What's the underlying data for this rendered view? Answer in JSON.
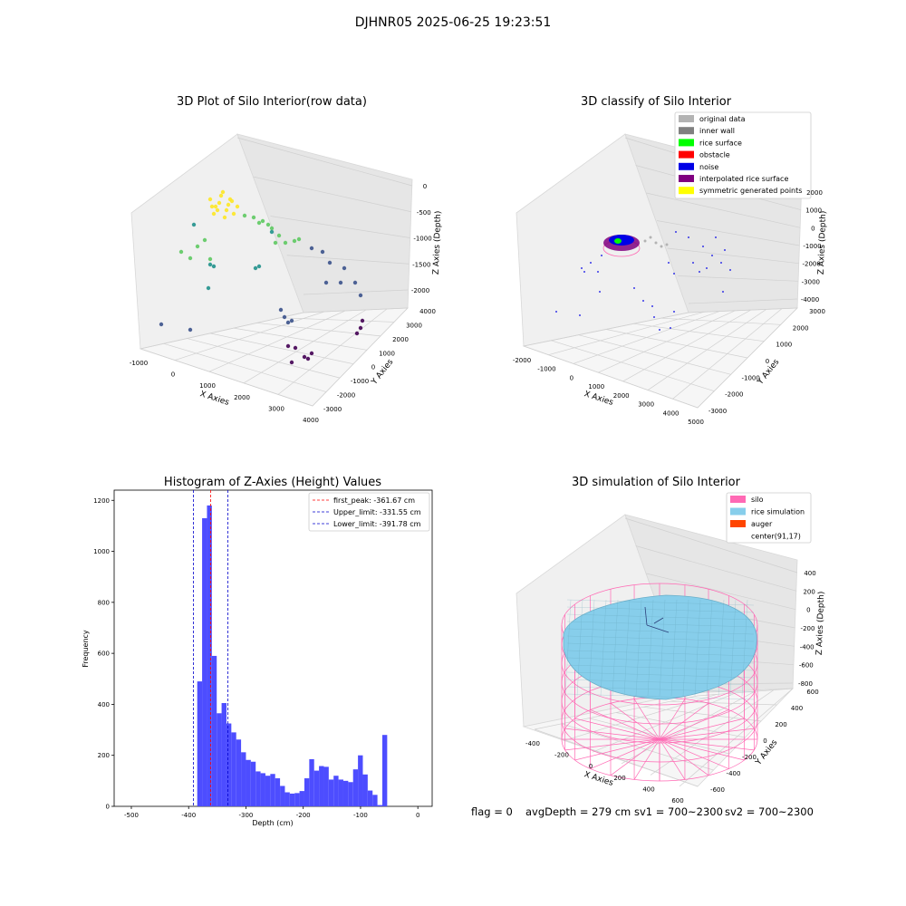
{
  "figure": {
    "suptitle": "DJHNR05 2025-06-25 19:23:51",
    "status": {
      "flag": "flag = 0",
      "avg_depth": "avgDepth = 279 cm",
      "sv1": "sv1 = 700~2300",
      "sv2": "sv2 = 700~2300"
    }
  },
  "chart_data": [
    {
      "type": "scatter",
      "title": "3D Plot of Silo Interior(row data)",
      "xlabel": "X Axies",
      "ylabel": "Y Axies",
      "zlabel": "Z Axies (Depth)",
      "x_ticks": [
        "-1000",
        "0",
        "1000",
        "2000",
        "3000",
        "4000"
      ],
      "y_ticks": [
        "-3000",
        "-2000",
        "-1000",
        "0",
        "1000",
        "2000",
        "3000",
        "4000"
      ],
      "z_ticks": [
        "-2000",
        "-1500",
        "-1000",
        "-500",
        "0"
      ],
      "colormap": [
        "#440154",
        "#3b528b",
        "#21918c",
        "#5ec962",
        "#fde725"
      ]
    },
    {
      "type": "scatter",
      "title": "3D classify of Silo Interior",
      "xlabel": "X Axies",
      "ylabel": "Y Axies",
      "zlabel": "Z Axies (Depth)",
      "x_ticks": [
        "-2000",
        "-1000",
        "0",
        "1000",
        "2000",
        "3000",
        "4000",
        "5000"
      ],
      "y_ticks": [
        "-3000",
        "-2000",
        "-1000",
        "0",
        "1000",
        "2000",
        "3000"
      ],
      "z_ticks": [
        "-4000",
        "-3000",
        "-2000",
        "-1000",
        "0",
        "1000",
        "2000"
      ],
      "legend": [
        {
          "label": "original data",
          "color": "#b3b3b3"
        },
        {
          "label": "inner wall",
          "color": "#808080"
        },
        {
          "label": "rice surface",
          "color": "#00ff00"
        },
        {
          "label": "obstacle",
          "color": "#ff0000"
        },
        {
          "label": "noise",
          "color": "#0000e6"
        },
        {
          "label": "interpolated rice surface",
          "color": "#800080"
        },
        {
          "label": "symmetric generated points",
          "color": "#ffff00"
        }
      ],
      "legend_loc": "upper right"
    },
    {
      "type": "bar",
      "title": "Histogram of Z-Axies (Height) Values",
      "xlabel": "Depth (cm)",
      "ylabel": "Frequency",
      "xlim": [
        -530,
        25
      ],
      "ylim": [
        0,
        1240
      ],
      "x_ticks": [
        -500,
        -400,
        -300,
        -200,
        -100,
        0
      ],
      "y_ticks": [
        0,
        200,
        400,
        600,
        800,
        1000,
        1200
      ],
      "bar_color": "#4d4dff",
      "bins_start": -385,
      "bin_width": 8.5,
      "values": [
        490,
        1130,
        1180,
        590,
        365,
        405,
        325,
        290,
        262,
        212,
        182,
        175,
        137,
        130,
        120,
        127,
        110,
        80,
        55,
        50,
        52,
        60,
        110,
        185,
        140,
        158,
        155,
        105,
        120,
        105,
        100,
        95,
        145,
        200,
        125,
        62,
        45,
        5,
        280
      ],
      "lines": [
        {
          "label": "first_peak: -361.67 cm",
          "x": -361.67,
          "color": "#ff0000"
        },
        {
          "label": "Upper_limit: -331.55 cm",
          "x": -331.55,
          "color": "#0000cc"
        },
        {
          "label": "Lower_limit: -391.78 cm",
          "x": -391.78,
          "color": "#0000cc"
        }
      ],
      "legend_loc": "upper right"
    },
    {
      "type": "area",
      "title": "3D simulation of Silo Interior",
      "xlabel": "X Axies",
      "ylabel": "Y Axies",
      "zlabel": "Z Axies (Depth)",
      "x_ticks": [
        "-400",
        "-200",
        "0",
        "200",
        "400",
        "600"
      ],
      "y_ticks": [
        "-600",
        "-400",
        "-200",
        "0",
        "200",
        "400",
        "600"
      ],
      "z_ticks": [
        "-800",
        "-600",
        "-400",
        "-200",
        "0",
        "200",
        "400"
      ],
      "legend": [
        {
          "label": "silo",
          "color": "#ff69b4"
        },
        {
          "label": "rice simulation",
          "color": "#87ceeb"
        },
        {
          "label": "auger",
          "color": "#ff4500"
        },
        {
          "label": "center(91,17)",
          "color": ""
        }
      ],
      "legend_loc": "upper right"
    }
  ]
}
